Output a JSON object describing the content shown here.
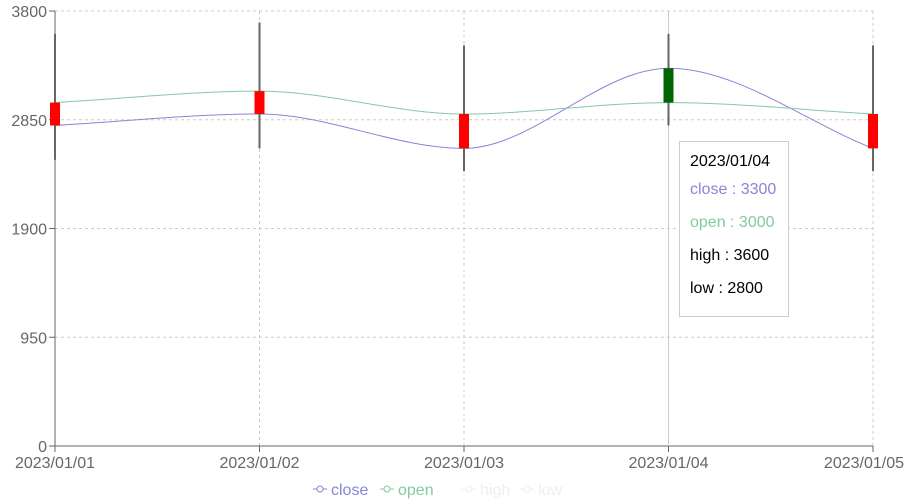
{
  "chart_data": {
    "type": "candlestick",
    "categories": [
      "2023/01/01",
      "2023/01/02",
      "2023/01/03",
      "2023/01/04",
      "2023/01/05"
    ],
    "series": [
      {
        "name": "close",
        "values": [
          2800,
          2900,
          2600,
          3300,
          2600
        ]
      },
      {
        "name": "open",
        "values": [
          3000,
          3100,
          2900,
          3000,
          2900
        ]
      },
      {
        "name": "high",
        "values": [
          3600,
          3700,
          3500,
          3600,
          3500
        ]
      },
      {
        "name": "low",
        "values": [
          2500,
          2600,
          2400,
          2800,
          2400
        ]
      }
    ],
    "ylim": [
      0,
      3800
    ],
    "yticks": [
      0,
      950,
      1900,
      2850,
      3800
    ],
    "grid": true,
    "legend_position": "bottom",
    "colors": {
      "close": "#8884d8",
      "open": "#82ca9d",
      "high_legend": "#eeeeee",
      "low_legend": "#eeeeee",
      "candle_up": "#006400",
      "candle_down": "#ff0000",
      "wick": "#666666",
      "grid": "#cccccc",
      "axis": "#666666",
      "cursor": "#cccccc"
    },
    "active_index": 3
  },
  "legend": [
    {
      "label": "close",
      "color": "#8884d8"
    },
    {
      "label": "open",
      "color": "#82ca9d"
    },
    {
      "label": "high",
      "color": "#eeeeee"
    },
    {
      "label": "low",
      "color": "#eeeeee"
    }
  ],
  "tooltip": {
    "title": "2023/01/04",
    "items": [
      {
        "text": "close : 3300",
        "color": "#8884d8"
      },
      {
        "text": "open : 3000",
        "color": "#82ca9d"
      },
      {
        "text": "high : 3600",
        "color": "#000000"
      },
      {
        "text": "low : 2800",
        "color": "#000000"
      }
    ]
  }
}
